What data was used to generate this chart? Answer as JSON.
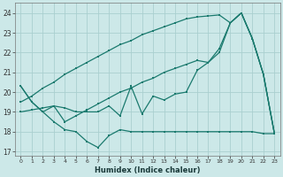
{
  "x": [
    0,
    1,
    2,
    3,
    4,
    5,
    6,
    7,
    8,
    9,
    10,
    11,
    12,
    13,
    14,
    15,
    16,
    17,
    18,
    19,
    20,
    21,
    22,
    23
  ],
  "line_jagged": [
    20.3,
    19.5,
    19.0,
    19.3,
    19.2,
    19.0,
    19.0,
    19.0,
    19.3,
    18.8,
    20.3,
    18.9,
    19.8,
    19.6,
    19.9,
    20.0,
    21.1,
    21.5,
    22.2,
    23.5,
    24.0,
    22.7,
    20.9,
    17.9
  ],
  "line_high": [
    19.5,
    19.8,
    20.2,
    20.5,
    20.9,
    21.2,
    21.5,
    21.8,
    22.1,
    22.4,
    22.6,
    22.9,
    23.1,
    23.3,
    23.5,
    23.7,
    23.8,
    23.85,
    23.9,
    23.5,
    24.0,
    22.7,
    20.9,
    17.9
  ],
  "line_low": [
    19.0,
    19.1,
    19.2,
    19.3,
    18.5,
    18.8,
    19.1,
    19.4,
    19.7,
    20.0,
    20.2,
    20.5,
    20.7,
    21.0,
    21.2,
    21.4,
    21.6,
    21.5,
    22.0,
    23.5,
    24.0,
    22.7,
    20.9,
    17.9
  ],
  "line_bottom": [
    20.3,
    19.5,
    19.0,
    18.5,
    18.1,
    18.0,
    17.5,
    17.2,
    17.8,
    18.1,
    18.0,
    18.0,
    18.0,
    18.0,
    18.0,
    18.0,
    18.0,
    18.0,
    18.0,
    18.0,
    18.0,
    18.0,
    17.9,
    17.9
  ],
  "color": "#1a7a6e",
  "bg_color": "#cce8e8",
  "grid_color": "#aacfcf",
  "xlabel": "Humidex (Indice chaleur)",
  "xlim": [
    -0.5,
    23.5
  ],
  "ylim": [
    16.8,
    24.5
  ],
  "yticks": [
    17,
    18,
    19,
    20,
    21,
    22,
    23,
    24
  ],
  "xticks": [
    0,
    1,
    2,
    3,
    4,
    5,
    6,
    7,
    8,
    9,
    10,
    11,
    12,
    13,
    14,
    15,
    16,
    17,
    18,
    19,
    20,
    21,
    22,
    23
  ]
}
